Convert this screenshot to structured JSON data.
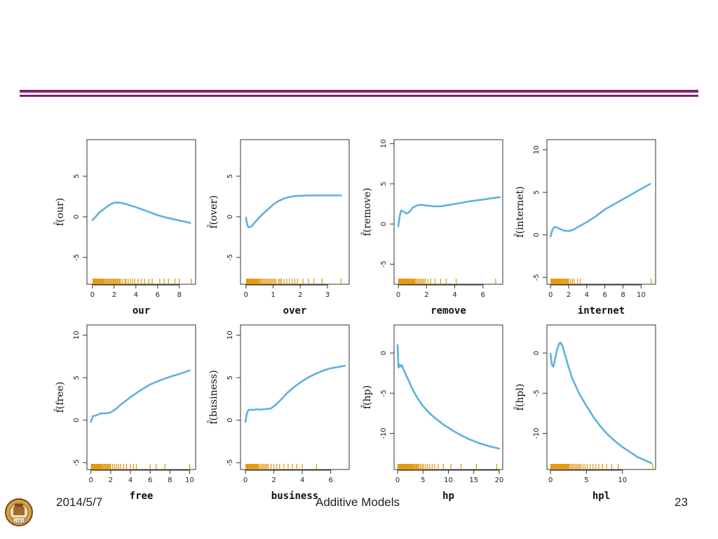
{
  "colors": {
    "curve": "#5fb1e0",
    "rug": "#e39a12",
    "rule": "#7b2570",
    "axis": "#333333"
  },
  "footer": {
    "date": "2014/5/7",
    "title": "Additive Models",
    "page": "23"
  },
  "logo": {
    "year": "1895",
    "icon": "university-seal-icon"
  },
  "chart_data": [
    {
      "type": "line",
      "xlabel": "our",
      "ylabel": "f̂(our)",
      "xticks": [
        0,
        2,
        4,
        6,
        8
      ],
      "yticks": [
        -5,
        0,
        5
      ],
      "xlim": [
        -0.5,
        9.5
      ],
      "ylim": [
        -8.3,
        9.5
      ],
      "x": [
        0,
        0.3,
        0.6,
        1,
        1.5,
        2,
        2.5,
        3,
        3.5,
        4,
        5,
        6,
        7,
        8,
        9
      ],
      "y": [
        -0.4,
        0,
        0.5,
        0.9,
        1.4,
        1.75,
        1.75,
        1.6,
        1.4,
        1.2,
        0.7,
        0.2,
        -0.15,
        -0.45,
        -0.75
      ],
      "rug": [
        0.05,
        0.1,
        0.15,
        0.2,
        0.25,
        0.3,
        0.35,
        0.4,
        0.45,
        0.5,
        0.55,
        0.6,
        0.65,
        0.7,
        0.75,
        0.8,
        0.85,
        0.9,
        0.95,
        1,
        1.1,
        1.2,
        1.3,
        1.4,
        1.5,
        1.6,
        1.7,
        1.8,
        1.9,
        2,
        2.1,
        2.2,
        2.3,
        2.4,
        2.5,
        2.6,
        2.8,
        3,
        3.1,
        3.3,
        3.5,
        3.7,
        3.9,
        4.2,
        4.5,
        4.8,
        5.2,
        5.5,
        6.2,
        6.6,
        7,
        7.6,
        8,
        9.1
      ]
    },
    {
      "type": "line",
      "xlabel": "over",
      "ylabel": "f̂(over)",
      "xticks": [
        0,
        1,
        2,
        3
      ],
      "yticks": [
        -5,
        0,
        5
      ],
      "xlim": [
        -0.2,
        3.8
      ],
      "ylim": [
        -8.3,
        9.5
      ],
      "x": [
        0,
        0.05,
        0.1,
        0.2,
        0.4,
        0.6,
        0.8,
        1,
        1.2,
        1.4,
        1.6,
        1.8,
        2,
        2.3,
        2.6,
        3,
        3.5
      ],
      "y": [
        -0.1,
        -1.0,
        -1.3,
        -1.2,
        -0.4,
        0.3,
        0.9,
        1.5,
        1.95,
        2.25,
        2.45,
        2.55,
        2.6,
        2.62,
        2.63,
        2.63,
        2.63
      ],
      "rug": [
        0.02,
        0.04,
        0.06,
        0.08,
        0.1,
        0.12,
        0.14,
        0.16,
        0.18,
        0.2,
        0.22,
        0.24,
        0.26,
        0.28,
        0.3,
        0.33,
        0.36,
        0.39,
        0.42,
        0.45,
        0.48,
        0.52,
        0.56,
        0.6,
        0.65,
        0.7,
        0.75,
        0.8,
        0.85,
        0.9,
        0.95,
        1,
        1.05,
        1.1,
        1.2,
        1.25,
        1.3,
        1.4,
        1.5,
        1.6,
        1.7,
        1.8,
        1.9,
        2.1,
        2.3,
        2.5,
        2.8,
        3.5
      ]
    },
    {
      "type": "line",
      "xlabel": "remove",
      "ylabel": "f̂(remove)",
      "xticks": [
        0,
        2,
        4,
        6
      ],
      "yticks": [
        -5,
        0,
        5,
        10
      ],
      "xlim": [
        -0.3,
        7.4
      ],
      "ylim": [
        -7.5,
        10.5
      ],
      "x": [
        0,
        0.1,
        0.2,
        0.4,
        0.6,
        0.8,
        1,
        1.3,
        1.6,
        2,
        2.5,
        3,
        4,
        5,
        6,
        7.2
      ],
      "y": [
        -0.3,
        1,
        1.7,
        1.5,
        1.3,
        1.5,
        2,
        2.3,
        2.4,
        2.3,
        2.2,
        2.2,
        2.5,
        2.8,
        3.05,
        3.35
      ],
      "rug": [
        0.03,
        0.06,
        0.09,
        0.12,
        0.15,
        0.18,
        0.21,
        0.24,
        0.27,
        0.3,
        0.34,
        0.38,
        0.42,
        0.46,
        0.5,
        0.55,
        0.6,
        0.65,
        0.7,
        0.75,
        0.8,
        0.85,
        0.9,
        0.95,
        1,
        1.05,
        1.1,
        1.15,
        1.2,
        1.3,
        1.4,
        1.5,
        1.6,
        1.7,
        1.8,
        1.9,
        2.1,
        2.3,
        2.6,
        3,
        3.4,
        4.1,
        6.9
      ]
    },
    {
      "type": "line",
      "xlabel": "internet",
      "ylabel": "f̂(internet)",
      "xticks": [
        0,
        2,
        4,
        6,
        8,
        10
      ],
      "yticks": [
        -5,
        0,
        5,
        10
      ],
      "xlim": [
        -0.4,
        11.6
      ],
      "ylim": [
        -5.8,
        11.2
      ],
      "x": [
        0,
        0.2,
        0.4,
        0.7,
        1,
        1.5,
        2,
        2.5,
        3,
        4,
        5,
        6,
        7,
        8,
        9,
        10,
        11
      ],
      "y": [
        -0.2,
        0.6,
        0.9,
        0.9,
        0.7,
        0.5,
        0.45,
        0.6,
        0.9,
        1.5,
        2.2,
        3,
        3.6,
        4.2,
        4.8,
        5.4,
        6
      ],
      "rug": [
        0.05,
        0.1,
        0.15,
        0.2,
        0.25,
        0.3,
        0.35,
        0.4,
        0.45,
        0.5,
        0.55,
        0.6,
        0.65,
        0.7,
        0.75,
        0.8,
        0.85,
        0.9,
        0.95,
        1,
        1.1,
        1.2,
        1.3,
        1.4,
        1.5,
        1.6,
        1.7,
        1.8,
        1.9,
        2,
        2.2,
        2.4,
        2.6,
        3,
        3.3,
        11.1
      ]
    },
    {
      "type": "line",
      "xlabel": "free",
      "ylabel": "f̂(free)",
      "xticks": [
        0,
        2,
        4,
        6,
        8,
        10
      ],
      "yticks": [
        -5,
        0,
        5,
        10
      ],
      "xlim": [
        -0.4,
        10.6
      ],
      "ylim": [
        -5.8,
        11.2
      ],
      "x": [
        0,
        0.2,
        0.5,
        1,
        1.5,
        2,
        2.5,
        3,
        4,
        5,
        6,
        7,
        8,
        9,
        10
      ],
      "y": [
        -0.2,
        0.5,
        0.55,
        0.8,
        0.8,
        0.9,
        1.3,
        1.8,
        2.7,
        3.5,
        4.2,
        4.7,
        5.1,
        5.45,
        5.85
      ],
      "rug": [
        0.04,
        0.08,
        0.12,
        0.16,
        0.2,
        0.25,
        0.3,
        0.35,
        0.4,
        0.45,
        0.5,
        0.55,
        0.6,
        0.65,
        0.7,
        0.75,
        0.8,
        0.85,
        0.9,
        0.95,
        1,
        1.05,
        1.1,
        1.2,
        1.3,
        1.4,
        1.5,
        1.6,
        1.7,
        1.8,
        1.9,
        2,
        2.2,
        2.4,
        2.6,
        2.8,
        3,
        3.3,
        3.6,
        4,
        4.3,
        4.6,
        6,
        6.6,
        7.5,
        10
      ]
    },
    {
      "type": "line",
      "xlabel": "business",
      "ylabel": "f̂(business)",
      "xticks": [
        0,
        2,
        4,
        6
      ],
      "yticks": [
        -5,
        0,
        5,
        10
      ],
      "xlim": [
        -0.35,
        7.3
      ],
      "ylim": [
        -5.8,
        11.2
      ],
      "x": [
        0,
        0.1,
        0.2,
        0.4,
        0.6,
        0.8,
        1,
        1.4,
        1.8,
        2.2,
        2.6,
        3,
        3.5,
        4,
        4.5,
        5,
        5.5,
        6,
        7
      ],
      "y": [
        -0.2,
        0.8,
        1.2,
        1.25,
        1.2,
        1.3,
        1.25,
        1.3,
        1.4,
        1.9,
        2.6,
        3.3,
        4,
        4.6,
        5.1,
        5.5,
        5.85,
        6.1,
        6.4
      ],
      "rug": [
        0.03,
        0.06,
        0.09,
        0.12,
        0.15,
        0.18,
        0.21,
        0.24,
        0.27,
        0.3,
        0.33,
        0.36,
        0.4,
        0.44,
        0.48,
        0.52,
        0.56,
        0.6,
        0.65,
        0.7,
        0.75,
        0.8,
        0.85,
        0.9,
        1,
        1.1,
        1.2,
        1.3,
        1.4,
        1.5,
        1.6,
        1.8,
        2,
        2.2,
        2.4,
        2.7,
        3,
        3.3,
        3.6,
        4,
        5
      ]
    },
    {
      "type": "line",
      "xlabel": "hp",
      "ylabel": "f̂(hp)",
      "xticks": [
        0,
        5,
        10,
        15,
        20
      ],
      "yticks": [
        -10,
        -5,
        0
      ],
      "xlim": [
        -0.7,
        20.7
      ],
      "ylim": [
        -14.5,
        3.5
      ],
      "x": [
        0,
        0.15,
        0.3,
        0.5,
        0.8,
        1,
        1.5,
        2,
        3,
        4,
        5,
        6,
        7,
        8,
        9,
        10,
        11,
        12,
        13,
        14,
        15,
        16,
        17,
        18,
        19,
        20
      ],
      "y": [
        1,
        -1.8,
        -1.4,
        -1.7,
        -1.5,
        -1.8,
        -2.5,
        -3.2,
        -4.6,
        -5.7,
        -6.6,
        -7.3,
        -7.9,
        -8.4,
        -8.9,
        -9.3,
        -9.7,
        -10.05,
        -10.4,
        -10.7,
        -10.95,
        -11.2,
        -11.4,
        -11.6,
        -11.75,
        -11.9
      ],
      "rug": [
        0.05,
        0.1,
        0.15,
        0.2,
        0.25,
        0.3,
        0.35,
        0.4,
        0.45,
        0.5,
        0.6,
        0.7,
        0.8,
        0.9,
        1,
        1.1,
        1.2,
        1.3,
        1.4,
        1.5,
        1.6,
        1.7,
        1.8,
        1.9,
        2,
        2.1,
        2.2,
        2.3,
        2.4,
        2.5,
        2.6,
        2.7,
        2.8,
        2.9,
        3,
        3.2,
        3.4,
        3.6,
        3.8,
        4,
        4.2,
        4.5,
        4.8,
        5.1,
        5.5,
        5.9,
        6.3,
        6.8,
        7.3,
        8,
        9,
        10.5,
        12.5,
        15.5,
        19.5
      ]
    },
    {
      "type": "line",
      "xlabel": "hpl",
      "ylabel": "f̂(hpl)",
      "xticks": [
        0,
        5,
        10
      ],
      "yticks": [
        -10,
        -5,
        0
      ],
      "xlim": [
        -0.5,
        14.6
      ],
      "ylim": [
        -14.5,
        3.5
      ],
      "x": [
        0,
        0.2,
        0.4,
        0.6,
        0.9,
        1.2,
        1.4,
        1.7,
        2,
        2.5,
        3,
        4,
        5,
        6,
        7,
        8,
        9,
        10,
        11,
        12,
        13,
        14
      ],
      "y": [
        -0.1,
        -1.5,
        -1.7,
        -0.9,
        0.4,
        1.2,
        1.3,
        0.8,
        -0.2,
        -1.7,
        -3.1,
        -5.1,
        -6.6,
        -8,
        -9.2,
        -10.2,
        -11,
        -11.7,
        -12.3,
        -12.9,
        -13.3,
        -13.7
      ],
      "rug": [
        0.05,
        0.1,
        0.15,
        0.2,
        0.25,
        0.3,
        0.35,
        0.4,
        0.45,
        0.5,
        0.6,
        0.7,
        0.8,
        0.9,
        1,
        1.1,
        1.2,
        1.3,
        1.4,
        1.5,
        1.6,
        1.7,
        1.8,
        1.9,
        2,
        2.1,
        2.2,
        2.3,
        2.4,
        2.5,
        2.6,
        2.8,
        3,
        3.2,
        3.4,
        3.6,
        3.8,
        4,
        4.2,
        4.5,
        4.8,
        5.1,
        5.5,
        5.9,
        6.3,
        6.7,
        7.2,
        7.8,
        8.5,
        9.4,
        14.2
      ]
    }
  ]
}
